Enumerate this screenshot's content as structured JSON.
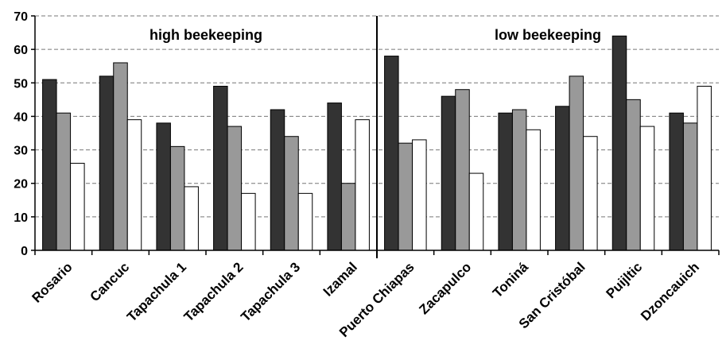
{
  "chart_data": {
    "type": "bar",
    "title": "",
    "xlabel": "",
    "ylabel": "",
    "ylim": [
      0,
      70
    ],
    "yticks": [
      "0",
      "10",
      "20",
      "30",
      "40",
      "50",
      "60",
      "70"
    ],
    "grid": true,
    "legend": "none",
    "categories": [
      "Rosario",
      "Cancuc",
      "Tapachula 1",
      "Tapachula 2",
      "Tapachula 3",
      "Izamal",
      "Puerto Chiapas",
      "Zacapulco",
      "Toniná",
      "San Cristóbal",
      "Puijltic",
      "Dzoncauich"
    ],
    "series": [
      {
        "color": "#333333",
        "values": [
          51,
          52,
          38,
          49,
          42,
          44,
          58,
          46,
          41,
          43,
          64,
          41
        ]
      },
      {
        "color": "#999999",
        "values": [
          41,
          56,
          31,
          37,
          34,
          20,
          32,
          48,
          42,
          52,
          45,
          38
        ]
      },
      {
        "color": "#ffffff",
        "values": [
          26,
          39,
          19,
          17,
          17,
          39,
          33,
          23,
          36,
          34,
          37,
          49
        ]
      }
    ],
    "annotations": [
      {
        "text": "high beekeeping"
      },
      {
        "text": "low beekeeping"
      }
    ]
  }
}
